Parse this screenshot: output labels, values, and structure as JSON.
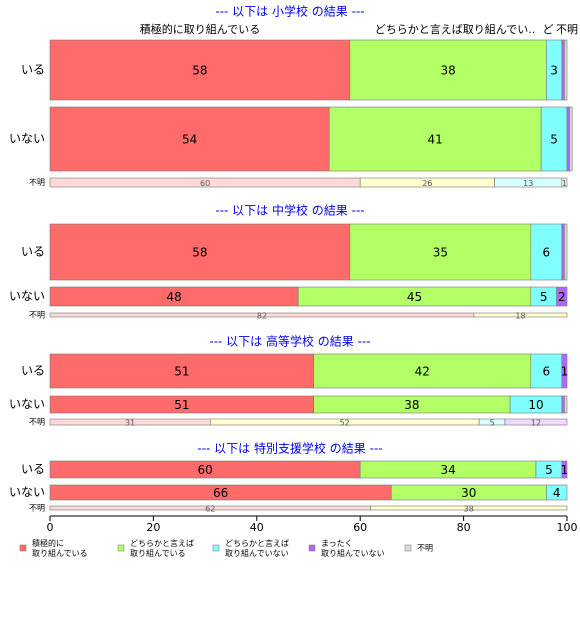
{
  "chart_data": [
    {
      "type": "stacked-barh",
      "title": "--- 以下は 小学校 の結果 ---",
      "column_labels": [
        "積極的に取り組んでいる",
        "どちらかと言えば取り組んでい..",
        "ど",
        "不明"
      ],
      "categories": [
        "いる",
        "いない",
        "不明"
      ],
      "series": [
        {
          "values": [
            58,
            54,
            60
          ]
        },
        {
          "values": [
            38,
            41,
            26
          ]
        },
        {
          "values": [
            3,
            5,
            13
          ]
        },
        {
          "values": [
            0.5,
            0.5,
            0
          ]
        },
        {
          "values": [
            0.5,
            0.5,
            1
          ]
        }
      ]
    },
    {
      "type": "stacked-barh",
      "title": "--- 以下は 中学校 の結果 ---",
      "categories": [
        "いる",
        "いない",
        "不明"
      ],
      "series": [
        {
          "values": [
            58,
            48,
            82
          ]
        },
        {
          "values": [
            35,
            45,
            18
          ]
        },
        {
          "values": [
            6,
            5,
            0
          ]
        },
        {
          "values": [
            0.5,
            2,
            0
          ]
        },
        {
          "values": [
            0.5,
            0,
            0
          ]
        }
      ]
    },
    {
      "type": "stacked-barh",
      "title": "--- 以下は 高等学校 の結果 ---",
      "categories": [
        "いる",
        "いない",
        "不明"
      ],
      "series": [
        {
          "values": [
            51,
            51,
            31
          ]
        },
        {
          "values": [
            42,
            38,
            52
          ]
        },
        {
          "values": [
            6,
            10,
            5
          ]
        },
        {
          "values": [
            1,
            0.5,
            12
          ]
        },
        {
          "values": [
            0,
            0.5,
            0
          ]
        }
      ]
    },
    {
      "type": "stacked-barh",
      "title": "--- 以下は 特別支援学校 の結果 ---",
      "categories": [
        "いる",
        "いない",
        "不明"
      ],
      "series": [
        {
          "values": [
            60,
            66,
            62
          ]
        },
        {
          "values": [
            34,
            30,
            38
          ]
        },
        {
          "values": [
            5,
            4,
            0
          ]
        },
        {
          "values": [
            1,
            0,
            0
          ]
        },
        {
          "values": [
            0,
            0,
            0
          ]
        }
      ],
      "xlim": [
        0,
        100
      ],
      "xticks": [
        0,
        20,
        40,
        60,
        80,
        100
      ]
    }
  ],
  "legend": [
    {
      "name": "積極的に\n取り組んでいる",
      "color": "#ff6b6b",
      "pale": "#ffd9d9"
    },
    {
      "name": "どちらかと言えば\n取り組んでいる",
      "color": "#b3ff66",
      "pale": "#ffffd0"
    },
    {
      "name": "どちらかと言えば\n取り組んでいない",
      "color": "#80ffff",
      "pale": "#d9ffff"
    },
    {
      "name": "まったく\n取り組んでいない",
      "color": "#b366ff",
      "pale": "#f0d9ff"
    },
    {
      "name": "不明",
      "color": "#d9d9d9",
      "pale": "#eeeeee"
    }
  ]
}
